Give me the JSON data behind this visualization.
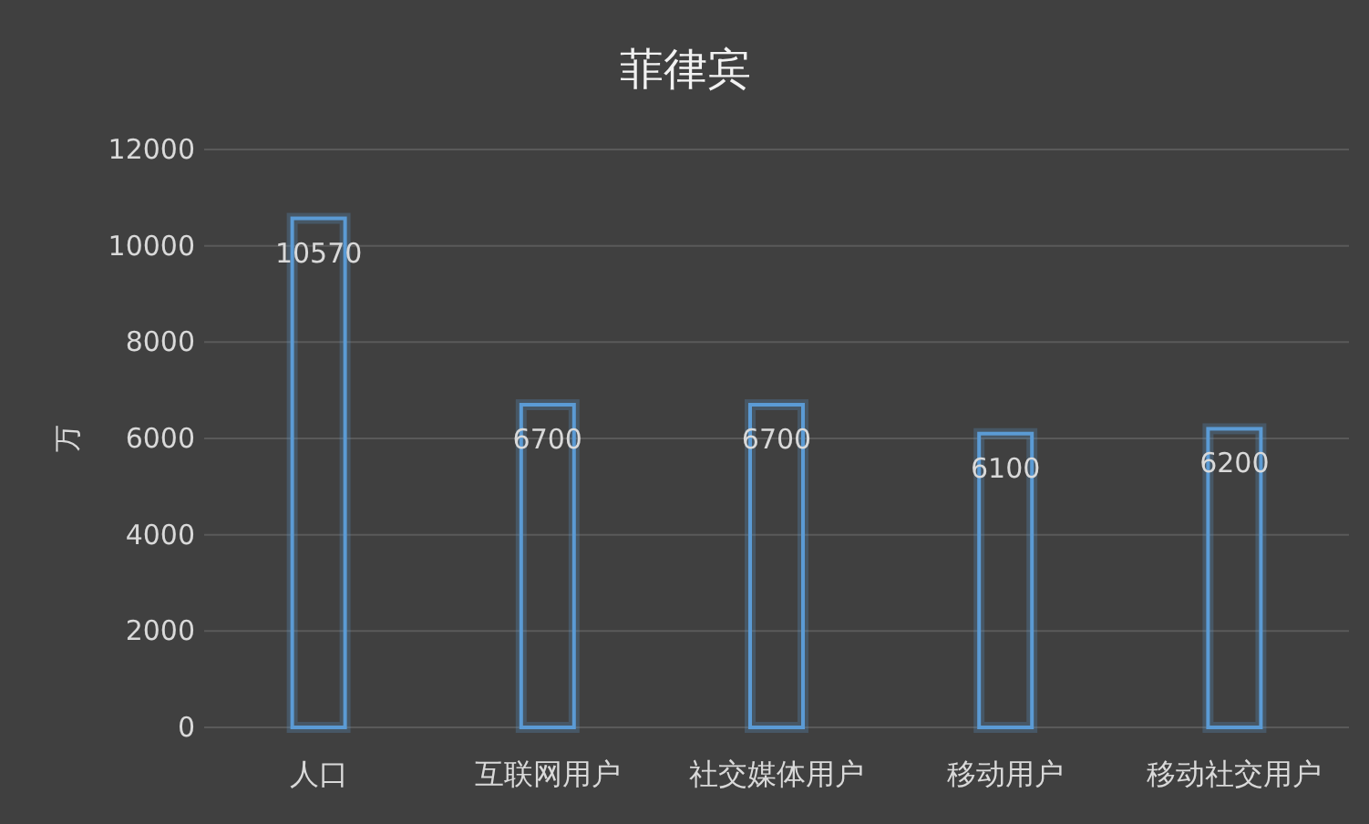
{
  "chart_data": {
    "type": "bar",
    "title": "菲律宾",
    "ylabel": "万",
    "categories": [
      "人口",
      "互联网用户",
      "社交媒体用户",
      "移动用户",
      "移动社交用户"
    ],
    "values": [
      10570,
      6700,
      6700,
      6100,
      6200
    ],
    "color": "#5b9bd5",
    "ylim": [
      0,
      12000
    ],
    "yticks": [
      0,
      2000,
      4000,
      6000,
      8000,
      10000,
      12000
    ],
    "grid": "y",
    "data_labels": true
  }
}
